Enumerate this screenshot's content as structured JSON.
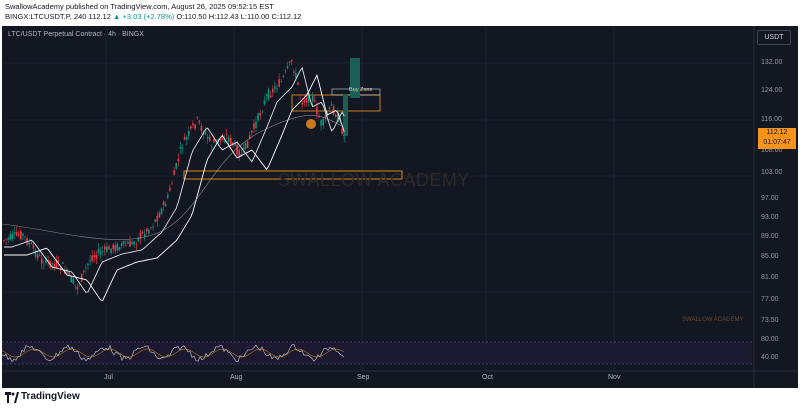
{
  "header": {
    "line1": "SwallowAcademy published on TradingView.com, August 26, 2025 09:52:15 EST",
    "symbol_interval": "BINGX:LTCUSDT.P, 240",
    "last": "112.12",
    "change": "+3.03 (+2.78%)",
    "open": "O:110.50",
    "high": "H:112.43",
    "low": "L:110.00",
    "close": "C:112.12"
  },
  "chart": {
    "symbol_desc": "LTC/USDT Perpetual Contract · 4h · BINGX",
    "currency": "USDT",
    "price_ticks": [
      "132.00",
      "124.00",
      "116.00",
      "108.00",
      "103.00",
      "97.00",
      "93.00",
      "89.00",
      "85.00",
      "81.00",
      "77.00",
      "73.50"
    ],
    "last_price": "112.12",
    "countdown": "01:07:47",
    "time_ticks": [
      "Jul",
      "Aug",
      "Sep",
      "Oct",
      "Nov"
    ],
    "watermark": "SWALLOW ACADEMY",
    "watermark_small": "SWALLOW ACADEMY",
    "buy_zone_label": "Buy Zone",
    "rsi_ticks": [
      "80.00",
      "40.00"
    ]
  },
  "colors": {
    "background": "#131722",
    "up": "#089981",
    "down": "#f23645",
    "last_price": "#f7931a",
    "zone": "#f7931a",
    "rsi": "#7e57c2"
  },
  "footer": {
    "brand": "TradingView"
  }
}
